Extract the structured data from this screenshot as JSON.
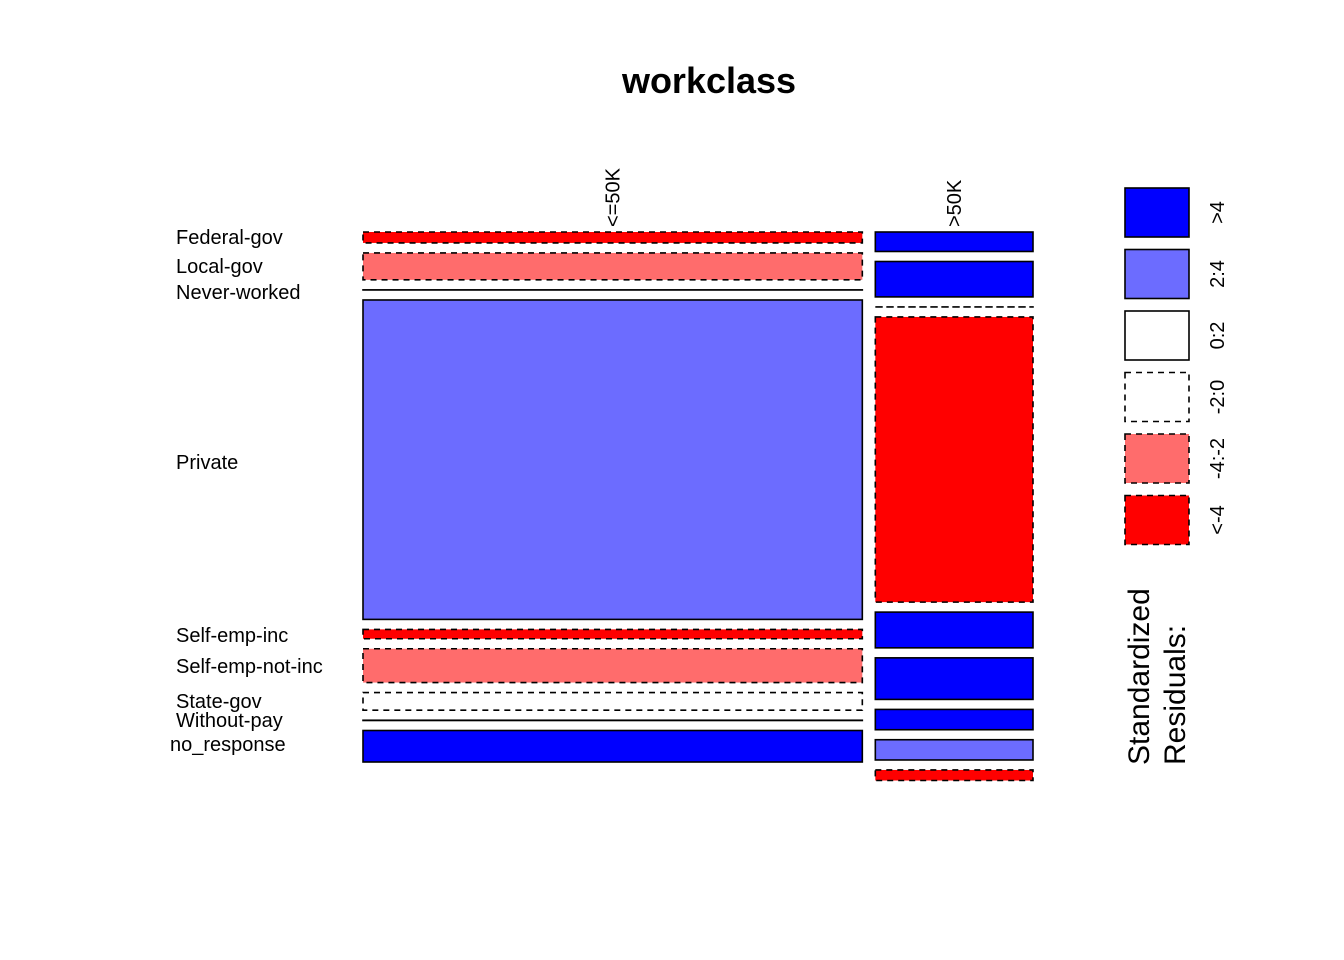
{
  "chart_data": {
    "type": "mosaic",
    "title": "workclass",
    "columns": [
      "<=50K",
      ">50K"
    ],
    "column_proportions": [
      0.76,
      0.24
    ],
    "rows": [
      "Federal-gov",
      "Local-gov",
      "Never-worked",
      "Private",
      "Self-emp-inc",
      "Self-emp-not-inc",
      "State-gov",
      "Without-pay",
      "no_response"
    ],
    "row_proportions": {
      "<=50K": [
        0.0243,
        0.0598,
        0.0003,
        0.7098,
        0.0208,
        0.0751,
        0.0393,
        0.0006,
        0.07
      ],
      ">50K": [
        0.0433,
        0.0787,
        0.0001,
        0.6337,
        0.0794,
        0.0924,
        0.0451,
        0.045,
        0.0234
      ]
    },
    "residual_classes": {
      "<=50K": [
        "<-4",
        "-4:-2",
        "0:2",
        ">4-light",
        "<-4",
        "-4:-2",
        "-2:0",
        "0:2",
        ">4"
      ],
      ">50K": [
        ">4",
        ">4",
        "-2:0",
        "<-4",
        ">4",
        ">4",
        ">4",
        "2:4",
        "<-4"
      ]
    },
    "legend": {
      "title": "Standardized\nResiduals:",
      "title_lines": [
        "Standardized",
        "Residuals:"
      ],
      "entries": [
        {
          "label": ">4",
          "color": "#0000ff",
          "dashed": false
        },
        {
          "label": "2:4",
          "color": "#6c6cff",
          "dashed": false
        },
        {
          "label": "0:2",
          "color": "#ffffff",
          "dashed": false
        },
        {
          "label": "-2:0",
          "color": "#ffffff",
          "dashed": true
        },
        {
          "label": "-4:-2",
          "color": "#ff6c6c",
          "dashed": true
        },
        {
          "label": "<-4",
          "color": "#ff0000",
          "dashed": true
        }
      ],
      "placement": "right"
    }
  }
}
